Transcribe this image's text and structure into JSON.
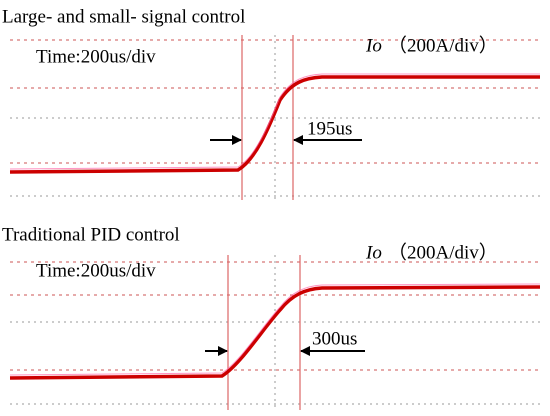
{
  "panels": [
    {
      "title": "Large- and small- signal control",
      "timebase": "Time:200us/div",
      "scale_symbol": "Io",
      "scale": "（200A/div）",
      "measurement": "195us"
    },
    {
      "title": "Traditional PID control",
      "timebase": "Time:200us/div",
      "scale_symbol": "Io",
      "scale": "（200A/div）",
      "measurement": "300us"
    }
  ]
}
